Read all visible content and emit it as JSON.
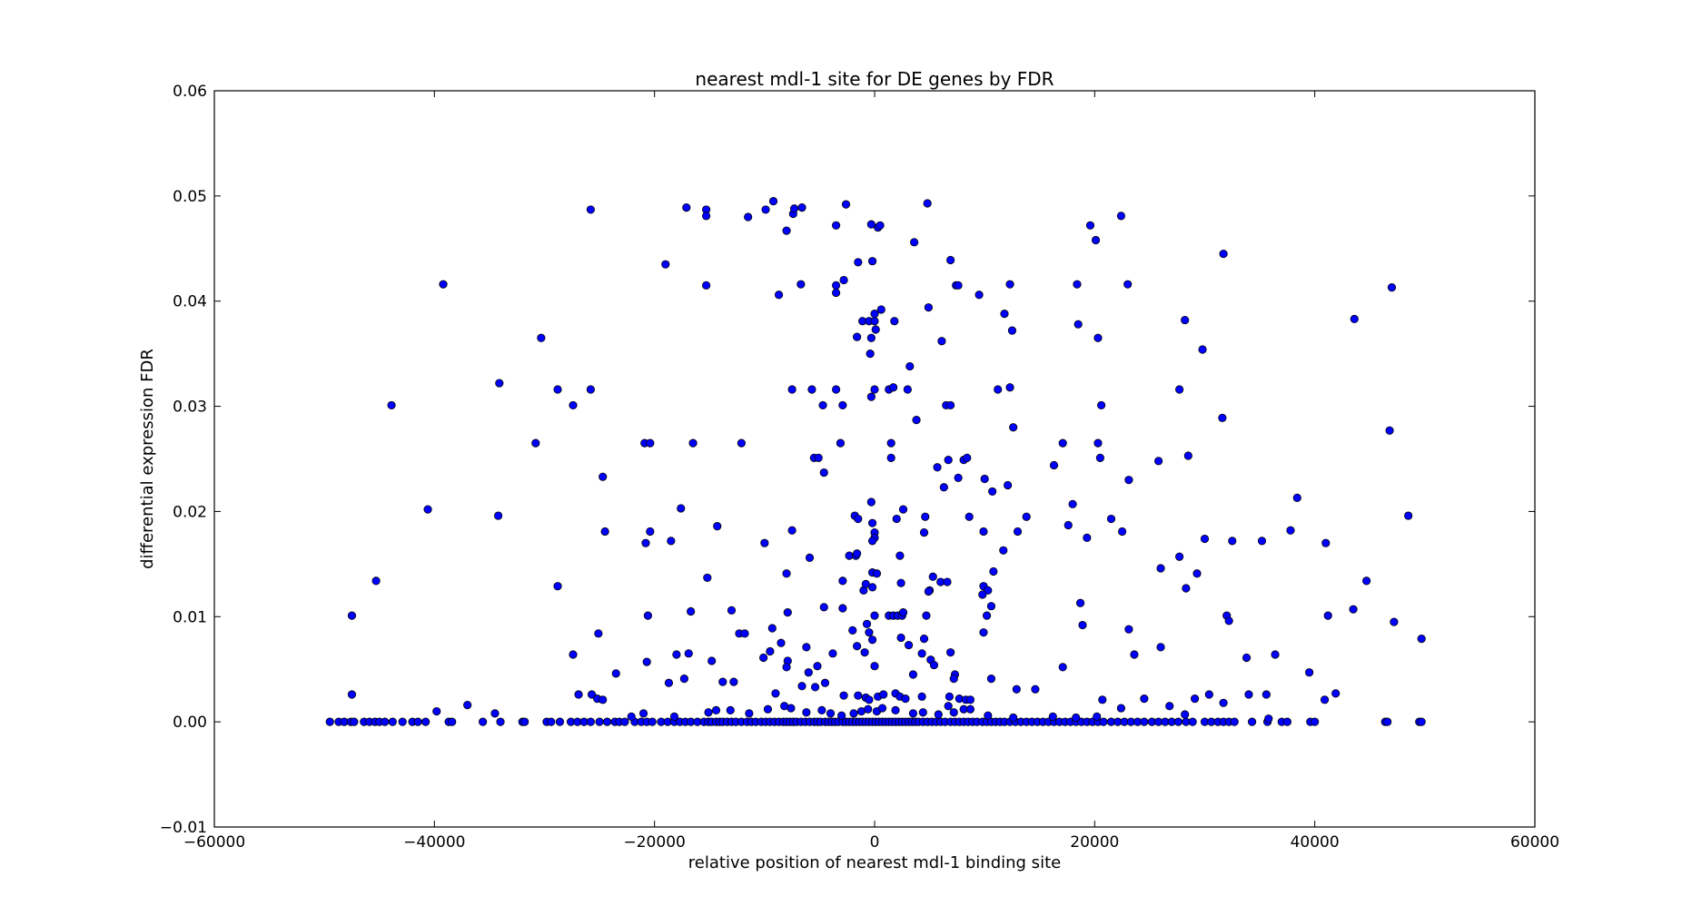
{
  "chart_data": {
    "type": "scatter",
    "title": "nearest mdl-1 site for DE genes by FDR",
    "xlabel": "relative position of nearest mdl-1 binding site",
    "ylabel": "differential expression FDR",
    "xlim": [
      -60000,
      60000
    ],
    "ylim": [
      -0.01,
      0.06
    ],
    "xticks": [
      -60000,
      -40000,
      -20000,
      0,
      20000,
      40000,
      60000
    ],
    "yticks": [
      -0.01,
      0.0,
      0.01,
      0.02,
      0.03,
      0.04,
      0.05,
      0.06
    ],
    "xtick_labels": [
      "−60000",
      "−40000",
      "−20000",
      "0",
      "20000",
      "40000",
      "60000"
    ],
    "ytick_labels": [
      "−0.01",
      "0.00",
      "0.01",
      "0.02",
      "0.03",
      "0.04",
      "0.05",
      "0.06"
    ],
    "grid": false,
    "legend": "none",
    "marker_color": "#0000ff",
    "marker_edge": "#000000",
    "points": [
      [
        -25800,
        0.0487
      ],
      [
        -17100,
        0.0489
      ],
      [
        -15300,
        0.0487
      ],
      [
        -15300,
        0.0481
      ],
      [
        -11500,
        0.048
      ],
      [
        -9900,
        0.0487
      ],
      [
        -9200,
        0.0495
      ],
      [
        -8000,
        0.0467
      ],
      [
        -7400,
        0.0483
      ],
      [
        -7300,
        0.0488
      ],
      [
        -6600,
        0.0489
      ],
      [
        -3500,
        0.0472
      ],
      [
        -2600,
        0.0492
      ],
      [
        -300,
        0.0473
      ],
      [
        300,
        0.047
      ],
      [
        500,
        0.0472
      ],
      [
        4800,
        0.0493
      ],
      [
        19600,
        0.0472
      ],
      [
        22400,
        0.0481
      ],
      [
        20100,
        0.0458
      ],
      [
        31700,
        0.0445
      ],
      [
        3600,
        0.0456
      ],
      [
        -19000,
        0.0435
      ],
      [
        -15300,
        0.0415
      ],
      [
        -39200,
        0.0416
      ],
      [
        -8700,
        0.0406
      ],
      [
        -6700,
        0.0416
      ],
      [
        -3500,
        0.0415
      ],
      [
        -3500,
        0.0408
      ],
      [
        -2800,
        0.042
      ],
      [
        -1500,
        0.0437
      ],
      [
        -200,
        0.0438
      ],
      [
        6900,
        0.0439
      ],
      [
        7400,
        0.0415
      ],
      [
        7600,
        0.0415
      ],
      [
        9500,
        0.0406
      ],
      [
        11800,
        0.0388
      ],
      [
        12300,
        0.0416
      ],
      [
        18400,
        0.0416
      ],
      [
        23000,
        0.0416
      ],
      [
        47000,
        0.0413
      ],
      [
        43600,
        0.0383
      ],
      [
        28200,
        0.0382
      ],
      [
        18500,
        0.0378
      ],
      [
        12500,
        0.0372
      ],
      [
        4900,
        0.0394
      ],
      [
        600,
        0.0392
      ],
      [
        -1100,
        0.0381
      ],
      [
        -500,
        0.0381
      ],
      [
        0,
        0.0381
      ],
      [
        0,
        0.0388
      ],
      [
        100,
        0.0373
      ],
      [
        1800,
        0.0381
      ],
      [
        -1600,
        0.0366
      ],
      [
        -300,
        0.0365
      ],
      [
        -400,
        0.035
      ],
      [
        6100,
        0.0362
      ],
      [
        20300,
        0.0365
      ],
      [
        29800,
        0.0354
      ],
      [
        3200,
        0.0338
      ],
      [
        -30300,
        0.0365
      ],
      [
        -34100,
        0.0322
      ],
      [
        -43900,
        0.0301
      ],
      [
        -28800,
        0.0316
      ],
      [
        -27400,
        0.0301
      ],
      [
        -25800,
        0.0316
      ],
      [
        -7500,
        0.0316
      ],
      [
        -5700,
        0.0316
      ],
      [
        -4700,
        0.0301
      ],
      [
        -3500,
        0.0316
      ],
      [
        -2900,
        0.0301
      ],
      [
        -300,
        0.0309
      ],
      [
        0,
        0.0316
      ],
      [
        1300,
        0.0316
      ],
      [
        1700,
        0.0318
      ],
      [
        3000,
        0.0316
      ],
      [
        3800,
        0.0287
      ],
      [
        6500,
        0.0301
      ],
      [
        6900,
        0.0301
      ],
      [
        11200,
        0.0316
      ],
      [
        12300,
        0.0318
      ],
      [
        12600,
        0.028
      ],
      [
        20600,
        0.0301
      ],
      [
        27700,
        0.0316
      ],
      [
        31600,
        0.0289
      ],
      [
        46800,
        0.0277
      ],
      [
        -30800,
        0.0265
      ],
      [
        -20900,
        0.0265
      ],
      [
        -20400,
        0.0265
      ],
      [
        -16500,
        0.0265
      ],
      [
        -12100,
        0.0265
      ],
      [
        -5500,
        0.0251
      ],
      [
        -5100,
        0.0251
      ],
      [
        -4600,
        0.0237
      ],
      [
        -3100,
        0.0265
      ],
      [
        1500,
        0.0265
      ],
      [
        1500,
        0.0251
      ],
      [
        5700,
        0.0242
      ],
      [
        6700,
        0.0249
      ],
      [
        8100,
        0.0249
      ],
      [
        8400,
        0.0251
      ],
      [
        7600,
        0.0232
      ],
      [
        6300,
        0.0223
      ],
      [
        10000,
        0.0231
      ],
      [
        12100,
        0.0225
      ],
      [
        16300,
        0.0244
      ],
      [
        17100,
        0.0265
      ],
      [
        20300,
        0.0265
      ],
      [
        20500,
        0.0251
      ],
      [
        23100,
        0.023
      ],
      [
        25800,
        0.0248
      ],
      [
        28500,
        0.0253
      ],
      [
        -24700,
        0.0233
      ],
      [
        -40600,
        0.0202
      ],
      [
        -34200,
        0.0196
      ],
      [
        -17600,
        0.0203
      ],
      [
        -14300,
        0.0186
      ],
      [
        -20400,
        0.0181
      ],
      [
        -20800,
        0.017
      ],
      [
        -18500,
        0.0172
      ],
      [
        -24500,
        0.0181
      ],
      [
        -7500,
        0.0182
      ],
      [
        -10000,
        0.017
      ],
      [
        -1800,
        0.0196
      ],
      [
        -1500,
        0.0193
      ],
      [
        -300,
        0.0209
      ],
      [
        -200,
        0.0189
      ],
      [
        0,
        0.018
      ],
      [
        0,
        0.0175
      ],
      [
        -200,
        0.0172
      ],
      [
        2600,
        0.0202
      ],
      [
        2000,
        0.0193
      ],
      [
        4600,
        0.0195
      ],
      [
        4500,
        0.018
      ],
      [
        8600,
        0.0195
      ],
      [
        10700,
        0.0219
      ],
      [
        9900,
        0.0181
      ],
      [
        13000,
        0.0181
      ],
      [
        13800,
        0.0195
      ],
      [
        17600,
        0.0187
      ],
      [
        18000,
        0.0207
      ],
      [
        19300,
        0.0175
      ],
      [
        21500,
        0.0193
      ],
      [
        22500,
        0.0181
      ],
      [
        30000,
        0.0174
      ],
      [
        32500,
        0.0172
      ],
      [
        35200,
        0.0172
      ],
      [
        37800,
        0.0182
      ],
      [
        38400,
        0.0213
      ],
      [
        41000,
        0.017
      ],
      [
        48500,
        0.0196
      ],
      [
        -45300,
        0.0134
      ],
      [
        -47500,
        0.0101
      ],
      [
        -28800,
        0.0129
      ],
      [
        -20600,
        0.0101
      ],
      [
        -15200,
        0.0137
      ],
      [
        -16700,
        0.0105
      ],
      [
        -20700,
        0.0057
      ],
      [
        -25100,
        0.0084
      ],
      [
        -27400,
        0.0064
      ],
      [
        -23500,
        0.0046
      ],
      [
        -8000,
        0.0141
      ],
      [
        -5900,
        0.0156
      ],
      [
        -2300,
        0.0158
      ],
      [
        -1700,
        0.0158
      ],
      [
        -1600,
        0.016
      ],
      [
        -1000,
        0.0125
      ],
      [
        -2900,
        0.0134
      ],
      [
        -800,
        0.0131
      ],
      [
        -200,
        0.0142
      ],
      [
        200,
        0.0141
      ],
      [
        -200,
        0.0128
      ],
      [
        2300,
        0.0158
      ],
      [
        2400,
        0.0132
      ],
      [
        5000,
        0.0125
      ],
      [
        5300,
        0.0138
      ],
      [
        4900,
        0.0124
      ],
      [
        6000,
        0.0133
      ],
      [
        6600,
        0.0133
      ],
      [
        9900,
        0.0129
      ],
      [
        10300,
        0.0125
      ],
      [
        10800,
        0.0143
      ],
      [
        11700,
        0.0163
      ],
      [
        9800,
        0.0121
      ],
      [
        10600,
        0.011
      ],
      [
        10200,
        0.0101
      ],
      [
        9900,
        0.0085
      ],
      [
        26000,
        0.0146
      ],
      [
        28300,
        0.0127
      ],
      [
        27700,
        0.0157
      ],
      [
        29300,
        0.0141
      ],
      [
        32000,
        0.0101
      ],
      [
        32200,
        0.0096
      ],
      [
        41200,
        0.0101
      ],
      [
        44700,
        0.0134
      ],
      [
        43500,
        0.0107
      ],
      [
        47200,
        0.0095
      ],
      [
        49700,
        0.0079
      ],
      [
        -13000,
        0.0106
      ],
      [
        -12300,
        0.0084
      ],
      [
        -11800,
        0.0084
      ],
      [
        -9300,
        0.0089
      ],
      [
        -8500,
        0.0075
      ],
      [
        -7900,
        0.0104
      ],
      [
        -7900,
        0.0058
      ],
      [
        -6200,
        0.0071
      ],
      [
        -4600,
        0.0109
      ],
      [
        -3800,
        0.0065
      ],
      [
        -2900,
        0.0108
      ],
      [
        -2000,
        0.0087
      ],
      [
        -1600,
        0.0072
      ],
      [
        -900,
        0.0066
      ],
      [
        -700,
        0.0093
      ],
      [
        -500,
        0.0085
      ],
      [
        -200,
        0.0078
      ],
      [
        0,
        0.0101
      ],
      [
        0,
        0.0053
      ],
      [
        1300,
        0.0101
      ],
      [
        1700,
        0.0101
      ],
      [
        2100,
        0.0101
      ],
      [
        2500,
        0.0101
      ],
      [
        2600,
        0.0104
      ],
      [
        2400,
        0.008
      ],
      [
        3100,
        0.0073
      ],
      [
        3500,
        0.0045
      ],
      [
        4300,
        0.0065
      ],
      [
        4700,
        0.0101
      ],
      [
        4500,
        0.0079
      ],
      [
        5100,
        0.0059
      ],
      [
        5400,
        0.0054
      ],
      [
        6900,
        0.0066
      ],
      [
        7300,
        0.0045
      ],
      [
        7200,
        0.0041
      ],
      [
        10600,
        0.0041
      ],
      [
        12900,
        0.0031
      ],
      [
        14600,
        0.0031
      ],
      [
        17100,
        0.0052
      ],
      [
        18900,
        0.0092
      ],
      [
        18700,
        0.0113
      ],
      [
        23100,
        0.0088
      ],
      [
        23600,
        0.0064
      ],
      [
        26000,
        0.0071
      ],
      [
        33800,
        0.0061
      ],
      [
        36400,
        0.0064
      ],
      [
        39500,
        0.0047
      ],
      [
        -18000,
        0.0064
      ],
      [
        -17300,
        0.0041
      ],
      [
        -16900,
        0.0065
      ],
      [
        -14800,
        0.0058
      ],
      [
        -13800,
        0.0038
      ],
      [
        -12800,
        0.0038
      ],
      [
        -18700,
        0.0037
      ],
      [
        -10100,
        0.0061
      ],
      [
        -9500,
        0.0067
      ],
      [
        -9000,
        0.0027
      ],
      [
        -8000,
        0.0052
      ],
      [
        -6600,
        0.0034
      ],
      [
        -6000,
        0.0047
      ],
      [
        -5400,
        0.0033
      ],
      [
        -5200,
        0.0053
      ],
      [
        -4500,
        0.0037
      ],
      [
        -2800,
        0.0025
      ],
      [
        -1500,
        0.0025
      ],
      [
        -800,
        0.0023
      ],
      [
        -500,
        0.0021
      ],
      [
        300,
        0.0024
      ],
      [
        800,
        0.0026
      ],
      [
        1900,
        0.0027
      ],
      [
        2300,
        0.0024
      ],
      [
        2800,
        0.0022
      ],
      [
        4300,
        0.0024
      ],
      [
        6800,
        0.0024
      ],
      [
        7700,
        0.0022
      ],
      [
        8300,
        0.0021
      ],
      [
        8700,
        0.0021
      ],
      [
        8100,
        0.0012
      ],
      [
        8700,
        0.0012
      ],
      [
        30400,
        0.0026
      ],
      [
        29100,
        0.0022
      ],
      [
        24500,
        0.0022
      ],
      [
        20700,
        0.0021
      ],
      [
        34000,
        0.0026
      ],
      [
        35600,
        0.0026
      ],
      [
        40900,
        0.0021
      ],
      [
        41900,
        0.0027
      ],
      [
        31700,
        0.0018
      ],
      [
        -47500,
        0.0026
      ],
      [
        -37000,
        0.0016
      ],
      [
        -39800,
        0.001
      ],
      [
        -34500,
        0.0008
      ],
      [
        -25700,
        0.0026
      ],
      [
        -25200,
        0.0022
      ],
      [
        -26900,
        0.0026
      ],
      [
        -24700,
        0.0021
      ],
      [
        -22100,
        0.0005
      ],
      [
        -21000,
        0.0008
      ],
      [
        -18200,
        0.0005
      ],
      [
        -15100,
        0.0009
      ],
      [
        -14400,
        0.0011
      ],
      [
        -13100,
        0.0011
      ],
      [
        -11400,
        0.0008
      ],
      [
        -9700,
        0.0012
      ],
      [
        -8200,
        0.0015
      ],
      [
        -7600,
        0.0013
      ],
      [
        -6200,
        0.0009
      ],
      [
        -4800,
        0.0011
      ],
      [
        -4000,
        0.0008
      ],
      [
        -3000,
        0.0006
      ],
      [
        -1900,
        0.0008
      ],
      [
        -1200,
        0.001
      ],
      [
        -600,
        0.0012
      ],
      [
        200,
        0.001
      ],
      [
        700,
        0.0013
      ],
      [
        1900,
        0.0011
      ],
      [
        3500,
        0.0008
      ],
      [
        4400,
        0.0009
      ],
      [
        5800,
        0.0007
      ],
      [
        6700,
        0.0015
      ],
      [
        7200,
        0.0009
      ],
      [
        10300,
        0.0006
      ],
      [
        12600,
        0.0004
      ],
      [
        16200,
        0.0005
      ],
      [
        18300,
        0.0004
      ],
      [
        20200,
        0.0005
      ],
      [
        22400,
        0.0013
      ],
      [
        26800,
        0.0015
      ],
      [
        28200,
        0.0007
      ],
      [
        35800,
        0.0003
      ]
    ],
    "zero_row_x": [
      -49500,
      -48700,
      -48200,
      -47600,
      -47300,
      -46400,
      -45900,
      -45400,
      -45000,
      -44500,
      -43800,
      -42900,
      -42000,
      -41500,
      -40800,
      -38700,
      -38400,
      -35600,
      -34000,
      -32000,
      -31800,
      -29800,
      -29400,
      -28600,
      -27600,
      -27000,
      -26400,
      -25800,
      -25000,
      -24300,
      -23600,
      -23200,
      -22700,
      -21800,
      -21200,
      -20700,
      -20200,
      -19400,
      -18800,
      -18200,
      -17700,
      -17200,
      -16700,
      -16100,
      -15500,
      -15100,
      -14800,
      -14400,
      -14100,
      -13800,
      -13400,
      -13000,
      -12600,
      -12100,
      -11600,
      -11200,
      -10800,
      -10300,
      -9900,
      -9500,
      -9100,
      -8700,
      -8300,
      -8000,
      -7700,
      -7400,
      -7100,
      -6700,
      -6300,
      -5900,
      -5500,
      -5200,
      -4900,
      -4500,
      -4200,
      -3900,
      -3600,
      -3300,
      -2900,
      -2600,
      -2300,
      -2000,
      -1700,
      -1400,
      -1100,
      -800,
      -500,
      -200,
      100,
      400,
      700,
      1000,
      1300,
      1600,
      1900,
      2200,
      2500,
      2800,
      3100,
      3400,
      3700,
      4000,
      4400,
      4800,
      5200,
      5600,
      6000,
      6400,
      6900,
      7300,
      7700,
      8100,
      8500,
      8900,
      9300,
      9800,
      10200,
      10600,
      11000,
      11400,
      11800,
      12300,
      12800,
      13300,
      13800,
      14300,
      14800,
      15300,
      15800,
      16300,
      16800,
      17300,
      17800,
      18300,
      18800,
      19300,
      19800,
      20300,
      20800,
      21500,
      22100,
      22700,
      23300,
      23900,
      24500,
      25200,
      25800,
      26400,
      27000,
      27600,
      28300,
      28900,
      30000,
      30600,
      31200,
      31700,
      32200,
      32700,
      34300,
      35700,
      37000,
      37500,
      39600,
      40000,
      46400,
      46600,
      49500,
      49700
    ]
  }
}
